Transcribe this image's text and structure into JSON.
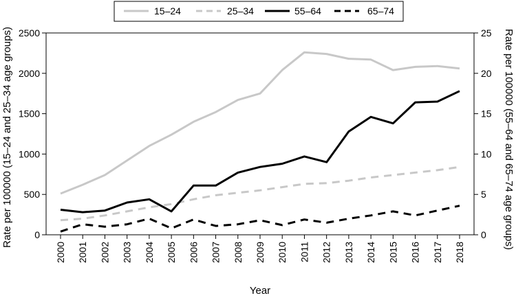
{
  "chart_data": {
    "type": "line",
    "xlabel": "Year",
    "ylabel_left": "Rate per 100000 (15–24 and 25–34 age groups)",
    "ylabel_right": "Rate per 100000 (55–64 and 65–74 age groups)",
    "x": [
      "2000",
      "2001",
      "2002",
      "2003",
      "2004",
      "2005",
      "2006",
      "2007",
      "2008",
      "2009",
      "2010",
      "2011",
      "2012",
      "2013",
      "2014",
      "2015",
      "2016",
      "2017",
      "2018"
    ],
    "ylim_left": [
      0,
      2500
    ],
    "ylim_right": [
      0,
      25
    ],
    "yticks_left": [
      "0",
      "500",
      "1000",
      "1500",
      "2000",
      "2500"
    ],
    "yticks_right": [
      "0",
      "5",
      "10",
      "15",
      "20",
      "25"
    ],
    "legend_position": "top-center",
    "grid": false,
    "series": [
      {
        "name": "15–24",
        "axis": "left",
        "style": "solid",
        "color": "#c8c8c8",
        "values": [
          510,
          620,
          740,
          920,
          1100,
          1240,
          1400,
          1520,
          1670,
          1750,
          2040,
          2260,
          2240,
          2180,
          2170,
          2040,
          2080,
          2090,
          2060
        ]
      },
      {
        "name": "25–34",
        "axis": "left",
        "style": "dashed",
        "color": "#c8c8c8",
        "values": [
          180,
          200,
          240,
          290,
          340,
          380,
          440,
          490,
          520,
          550,
          590,
          630,
          640,
          670,
          710,
          740,
          770,
          800,
          840
        ]
      },
      {
        "name": "55–64",
        "axis": "right",
        "style": "solid",
        "color": "#000000",
        "values": [
          3.1,
          2.8,
          3.0,
          4.0,
          4.4,
          2.9,
          6.1,
          6.1,
          7.7,
          8.4,
          8.8,
          9.7,
          9.0,
          12.8,
          14.6,
          13.8,
          16.4,
          16.5,
          17.8
        ]
      },
      {
        "name": "65–74",
        "axis": "right",
        "style": "dashed",
        "color": "#000000",
        "values": [
          0.4,
          1.3,
          1.0,
          1.3,
          2.0,
          0.8,
          1.9,
          1.1,
          1.3,
          1.8,
          1.2,
          1.9,
          1.5,
          2.0,
          2.4,
          2.9,
          2.4,
          3.0,
          3.6
        ]
      }
    ]
  }
}
